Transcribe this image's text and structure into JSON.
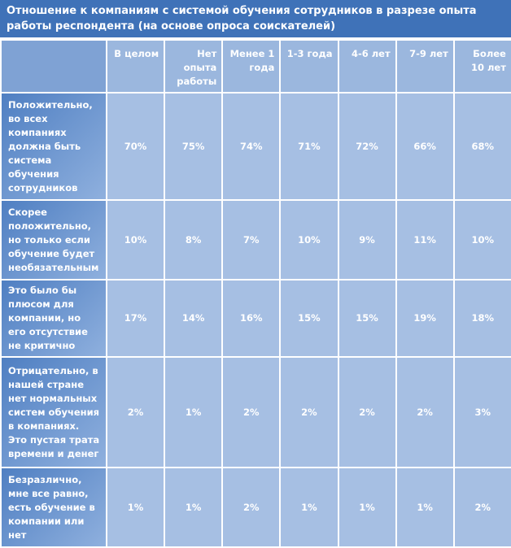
{
  "header": {
    "title": "Отношение к компаниям с системой обучения сотрудников в разрезе опыта работы респондента (на основе опроса соискателей)"
  },
  "table": {
    "columns": [
      "В целом",
      "Нет опыта работы",
      "Менее 1 года",
      "1-3 года",
      "4-6 лет",
      "7-9 лет",
      "Более 10 лет"
    ],
    "rows": [
      {
        "label": "Положительно, во всех компаниях должна быть система обучения сотрудников",
        "values": [
          "70%",
          "75%",
          "74%",
          "71%",
          "72%",
          "66%",
          "68%"
        ]
      },
      {
        "label": "Скорее положительно, но только если обучение будет необязательным",
        "values": [
          "10%",
          "8%",
          "7%",
          "10%",
          "9%",
          "11%",
          "10%"
        ]
      },
      {
        "label": "Это было бы плюсом для компании, но его отсутствие не критично",
        "values": [
          "17%",
          "14%",
          "16%",
          "15%",
          "15%",
          "19%",
          "18%"
        ]
      },
      {
        "label": "Отрицательно, в нашей стране нет нормальных систем обучения в компаниях. Это пустая трата времени и денег",
        "values": [
          "2%",
          "1%",
          "2%",
          "2%",
          "2%",
          "2%",
          "3%"
        ]
      },
      {
        "label": "Безразлично, мне все равно, есть обучение в компании или нет",
        "values": [
          "1%",
          "1%",
          "2%",
          "1%",
          "1%",
          "1%",
          "2%"
        ]
      }
    ]
  }
}
